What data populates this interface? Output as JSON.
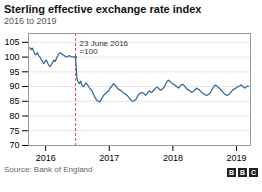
{
  "chart_data": {
    "type": "line",
    "title": "Sterling effective exchange rate index",
    "subtitle": "2016 to 2019",
    "source": "Source: Bank of England",
    "logo": "BBC",
    "color": "#2a6496",
    "grid": true,
    "xlim": [
      2015.73,
      2019.22
    ],
    "xticks": [
      2016,
      2017,
      2018,
      2019
    ],
    "ylim": [
      70,
      108
    ],
    "yticks": [
      70,
      75,
      80,
      85,
      90,
      95,
      100,
      105
    ],
    "annotation": {
      "text": [
        "23 June 2016",
        "=100"
      ],
      "x": 2016.47,
      "y": 100.0,
      "color": "#cc5555",
      "line_style": "dashed"
    },
    "x": [
      2015.75,
      2015.77,
      2015.79,
      2015.81,
      2015.83,
      2015.85,
      2015.87,
      2015.89,
      2015.91,
      2015.93,
      2015.95,
      2015.97,
      2015.99,
      2016.01,
      2016.03,
      2016.05,
      2016.07,
      2016.09,
      2016.11,
      2016.13,
      2016.15,
      2016.17,
      2016.19,
      2016.21,
      2016.23,
      2016.25,
      2016.27,
      2016.29,
      2016.31,
      2016.33,
      2016.35,
      2016.37,
      2016.39,
      2016.41,
      2016.43,
      2016.45,
      2016.47,
      2016.49,
      2016.51,
      2016.53,
      2016.55,
      2016.57,
      2016.59,
      2016.61,
      2016.63,
      2016.65,
      2016.67,
      2016.69,
      2016.71,
      2016.73,
      2016.75,
      2016.77,
      2016.79,
      2016.81,
      2016.83,
      2016.85,
      2016.87,
      2016.89,
      2016.91,
      2016.93,
      2016.95,
      2016.97,
      2016.99,
      2017.01,
      2017.03,
      2017.05,
      2017.07,
      2017.09,
      2017.11,
      2017.13,
      2017.15,
      2017.17,
      2017.19,
      2017.21,
      2017.23,
      2017.25,
      2017.27,
      2017.29,
      2017.31,
      2017.33,
      2017.35,
      2017.37,
      2017.39,
      2017.41,
      2017.43,
      2017.45,
      2017.47,
      2017.49,
      2017.51,
      2017.53,
      2017.55,
      2017.57,
      2017.59,
      2017.61,
      2017.63,
      2017.65,
      2017.67,
      2017.69,
      2017.71,
      2017.73,
      2017.75,
      2017.77,
      2017.79,
      2017.81,
      2017.83,
      2017.85,
      2017.87,
      2017.89,
      2017.91,
      2017.93,
      2017.95,
      2017.97,
      2017.99,
      2018.01,
      2018.03,
      2018.05,
      2018.07,
      2018.09,
      2018.11,
      2018.13,
      2018.15,
      2018.17,
      2018.19,
      2018.21,
      2018.23,
      2018.25,
      2018.27,
      2018.29,
      2018.31,
      2018.33,
      2018.35,
      2018.37,
      2018.39,
      2018.41,
      2018.43,
      2018.45,
      2018.47,
      2018.49,
      2018.51,
      2018.53,
      2018.55,
      2018.57,
      2018.59,
      2018.61,
      2018.63,
      2018.65,
      2018.67,
      2018.69,
      2018.71,
      2018.73,
      2018.75,
      2018.77,
      2018.79,
      2018.81,
      2018.83,
      2018.85,
      2018.87,
      2018.89,
      2018.91,
      2018.93,
      2018.95,
      2018.97,
      2018.99,
      2019.01,
      2019.03,
      2019.05,
      2019.07,
      2019.09,
      2019.11,
      2019.13,
      2019.15,
      2019.17,
      2019.19
    ],
    "values": [
      103.2,
      102.5,
      103.0,
      102.0,
      101.0,
      100.8,
      101.5,
      100.5,
      100.0,
      99.2,
      98.5,
      97.8,
      98.5,
      99.0,
      98.0,
      97.2,
      96.8,
      97.5,
      98.2,
      99.0,
      98.5,
      99.5,
      100.5,
      101.2,
      101.5,
      101.0,
      100.8,
      100.5,
      100.2,
      100.0,
      100.3,
      100.5,
      100.2,
      100.0,
      100.1,
      100.0,
      100.0,
      93.0,
      91.5,
      91.0,
      91.8,
      90.5,
      90.0,
      90.5,
      91.2,
      90.8,
      90.2,
      89.5,
      89.0,
      88.5,
      87.5,
      86.5,
      85.8,
      85.2,
      85.0,
      84.8,
      85.5,
      86.2,
      87.0,
      87.5,
      87.8,
      88.2,
      88.5,
      89.5,
      89.8,
      90.5,
      91.0,
      90.5,
      90.0,
      89.5,
      89.0,
      88.8,
      88.5,
      88.0,
      87.8,
      87.5,
      87.2,
      86.8,
      86.2,
      85.8,
      85.2,
      85.0,
      85.2,
      85.5,
      86.0,
      87.0,
      87.5,
      87.8,
      88.0,
      87.8,
      87.5,
      87.0,
      87.5,
      88.0,
      88.5,
      88.2,
      88.0,
      88.5,
      89.0,
      89.5,
      89.8,
      89.5,
      89.0,
      88.8,
      89.0,
      89.5,
      90.0,
      91.0,
      91.8,
      92.2,
      91.8,
      91.5,
      91.0,
      90.8,
      90.5,
      90.2,
      89.8,
      89.5,
      90.0,
      90.5,
      90.8,
      90.5,
      90.0,
      89.5,
      89.0,
      88.8,
      88.5,
      88.0,
      88.2,
      88.5,
      89.0,
      89.5,
      89.2,
      89.0,
      88.5,
      88.0,
      87.8,
      87.5,
      87.2,
      87.0,
      87.2,
      87.5,
      88.0,
      88.8,
      89.5,
      90.2,
      90.5,
      90.2,
      89.8,
      89.5,
      89.0,
      88.5,
      88.0,
      87.5,
      87.2,
      87.0,
      87.2,
      87.5,
      88.0,
      88.5,
      89.0,
      89.2,
      89.5,
      89.8,
      90.0,
      90.2,
      90.5,
      90.2,
      89.8,
      89.5,
      89.8,
      90.2,
      90.0
    ]
  }
}
